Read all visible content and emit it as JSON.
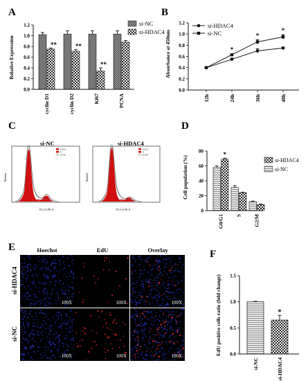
{
  "colors": {
    "black": "#111111",
    "red": "#d01010",
    "white": "#ffffff"
  },
  "panel_labels": [
    "A",
    "B",
    "C",
    "D",
    "E",
    "F"
  ],
  "chart_data": [
    {
      "panel": "A",
      "type": "bar",
      "ylabel": "Relative Expression",
      "ylim": [
        0,
        1.2
      ],
      "yticks": [
        "0.0",
        "0.2",
        "0.4",
        "0.6",
        "0.8",
        "1.0",
        "1.2"
      ],
      "categories": [
        "cyclin D1",
        "cyclin D2",
        "Ki67",
        "PCNA"
      ],
      "series": [
        {
          "name": "si-NC",
          "values": [
            1.02,
            1.03,
            1.03,
            1.03
          ],
          "errors": [
            0.04,
            0.06,
            0.06,
            0.06
          ]
        },
        {
          "name": "si-HDAC4",
          "values": [
            0.75,
            0.71,
            0.34,
            0.88
          ],
          "errors": [
            0.02,
            0.03,
            0.06,
            0.03
          ]
        }
      ],
      "annotations": [
        "**",
        "**",
        "**",
        ""
      ],
      "legend": "top-right"
    },
    {
      "panel": "B",
      "type": "line",
      "ylabel": "Absorbance at 450nm",
      "ylim": [
        0,
        1.2
      ],
      "yticks": [
        "0.0",
        "0.2",
        "0.4",
        "0.6",
        "0.8",
        "1.0",
        "1.2"
      ],
      "categories": [
        "12h",
        "24h",
        "36h",
        "48h"
      ],
      "series": [
        {
          "name": "si-HDAC4",
          "values": [
            0.4,
            0.55,
            0.7,
            0.75
          ],
          "errors": [
            0.01,
            0.02,
            0.04,
            0.02
          ]
        },
        {
          "name": "si-NC",
          "values": [
            0.4,
            0.63,
            0.86,
            0.95
          ],
          "errors": [
            0.01,
            0.02,
            0.04,
            0.04
          ]
        }
      ],
      "annotations": [
        "",
        "*",
        "*",
        "*"
      ],
      "legend": "top-left"
    },
    {
      "panel": "C",
      "type": "area",
      "xlabel": "FL2-A FE-A",
      "ylabel": "Number",
      "titles": [
        "si-NC",
        "si-HDAC4"
      ],
      "legend_entries": [
        "G0/G1",
        "S",
        "G2/M"
      ]
    },
    {
      "panel": "D",
      "type": "bar",
      "ylabel": "Cell population (%)",
      "ylim": [
        0,
        80
      ],
      "yticks": [
        "0",
        "20",
        "40",
        "60",
        "80"
      ],
      "categories": [
        "G0/G1",
        "S",
        "G2/M"
      ],
      "series": [
        {
          "name": "si-HDAC4",
          "values": [
            69,
            24,
            8
          ],
          "errors": [
            1.5,
            0.8,
            0.8
          ]
        },
        {
          "name": "si-NC",
          "values": [
            58,
            31,
            12
          ],
          "errors": [
            2.0,
            2.5,
            0.8
          ]
        }
      ],
      "annotations": [
        "*",
        "",
        ""
      ],
      "legend": "top-right"
    },
    {
      "panel": "E",
      "type": "table",
      "column_headers": [
        "Hoechst",
        "EdU",
        "Overlay"
      ],
      "row_labels": [
        "si-HDAC4",
        "si-NC"
      ],
      "magnification": "100X"
    },
    {
      "panel": "F",
      "type": "bar",
      "ylabel": "EdU positive cells ratio (fold change)",
      "ylim": [
        0,
        1.5
      ],
      "yticks": [
        "0.0",
        "0.5",
        "1.0",
        "1.5"
      ],
      "categories": [
        "si-NC",
        "si-HDAC4"
      ],
      "values": [
        1.0,
        0.65
      ],
      "errors": [
        0.01,
        0.09
      ],
      "annotations": [
        "",
        "*"
      ]
    }
  ]
}
